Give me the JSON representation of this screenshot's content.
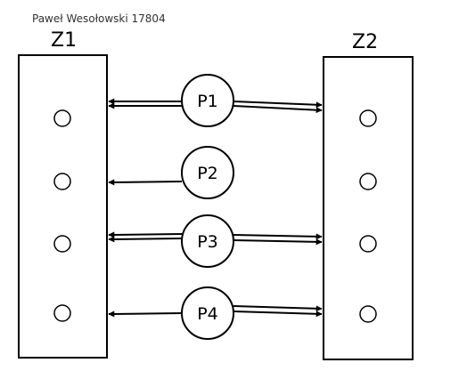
{
  "author": "Paweł Wesołowski 17804",
  "zones": {
    "left": {
      "label": "Z1"
    },
    "right": {
      "label": "Z2"
    }
  },
  "processes": [
    {
      "label": "P1",
      "left_arrow": "double",
      "right_arrow": "double"
    },
    {
      "label": "P2",
      "left_arrow": "single",
      "right_arrow": "none"
    },
    {
      "label": "P3",
      "left_arrow": "double",
      "right_arrow": "double"
    },
    {
      "label": "P4",
      "left_arrow": "single",
      "right_arrow": "double"
    }
  ],
  "colors": {
    "stroke": "#000000",
    "background": "#ffffff"
  }
}
